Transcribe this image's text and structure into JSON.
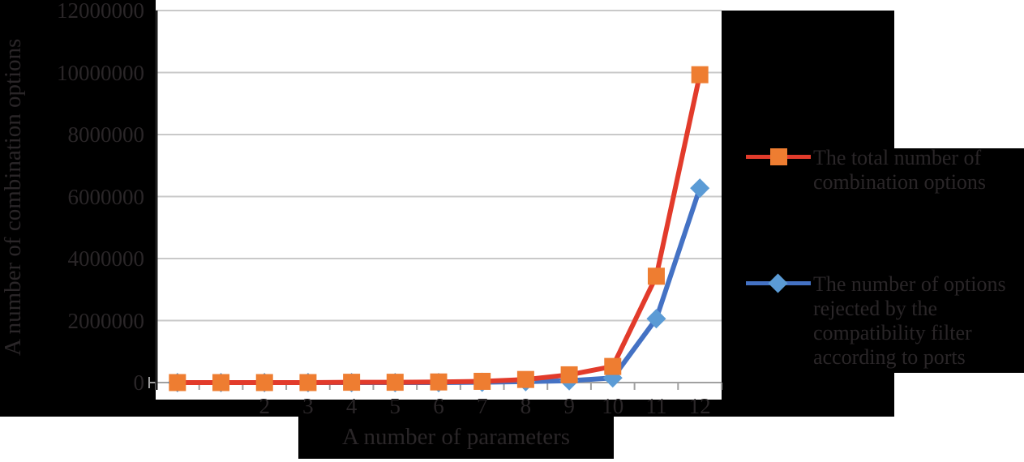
{
  "colors": {
    "background": "#000000",
    "plot_background": "#ffffff",
    "text": "#2a2628",
    "gridline": "#c9c9c9",
    "axis_line": "#a0a0a0",
    "y_axis_line": "#1f1f1f",
    "series1_line": "#e23b2b",
    "series1_marker": "#ee7d31",
    "series2_line": "#4472c4",
    "series2_marker": "#5b9bd5"
  },
  "y_axis": {
    "title": "A number of combination options",
    "tick_labels": [
      "0",
      "2000000",
      "4000000",
      "6000000",
      "8000000",
      "10000000",
      "12000000"
    ],
    "tick_values": [
      0,
      2000000,
      4000000,
      6000000,
      8000000,
      10000000,
      12000000
    ],
    "max": 12000000
  },
  "x_axis": {
    "title": "A number of parameters",
    "category_labels": [
      "",
      "",
      "2",
      "3",
      "4",
      "5",
      "6",
      "7",
      "8",
      "9",
      "10",
      "11",
      "12"
    ]
  },
  "legend": {
    "items": [
      {
        "label": "The total number of combination options",
        "marker": "square"
      },
      {
        "label": "The number of options rejected by the compatibility filter according to ports",
        "marker": "diamond"
      }
    ]
  },
  "chart_data": {
    "type": "line",
    "title": "",
    "xlabel": "A number of parameters",
    "ylabel": "A number of combination options",
    "categories": [
      "",
      "",
      "2",
      "3",
      "4",
      "5",
      "6",
      "7",
      "8",
      "9",
      "10",
      "11",
      "12"
    ],
    "ylim": [
      0,
      12000000
    ],
    "y_ticks": [
      0,
      2000000,
      4000000,
      6000000,
      8000000,
      10000000,
      12000000
    ],
    "grid": "horizontal",
    "legend_position": "right",
    "series": [
      {
        "name": "The total number of combination options",
        "line_color": "#e23b2b",
        "marker": "square",
        "marker_color": "#ee7d31",
        "values": [
          0,
          0,
          0,
          0,
          10000,
          10000,
          20000,
          40000,
          100000,
          250000,
          520000,
          3430000,
          9930000
        ]
      },
      {
        "name": "The number of options rejected by the compatibility filter according to ports",
        "line_color": "#4472c4",
        "marker": "diamond",
        "marker_color": "#5b9bd5",
        "values": [
          0,
          0,
          0,
          0,
          0,
          0,
          0,
          10000,
          30000,
          60000,
          150000,
          2060000,
          6270000
        ]
      }
    ]
  }
}
